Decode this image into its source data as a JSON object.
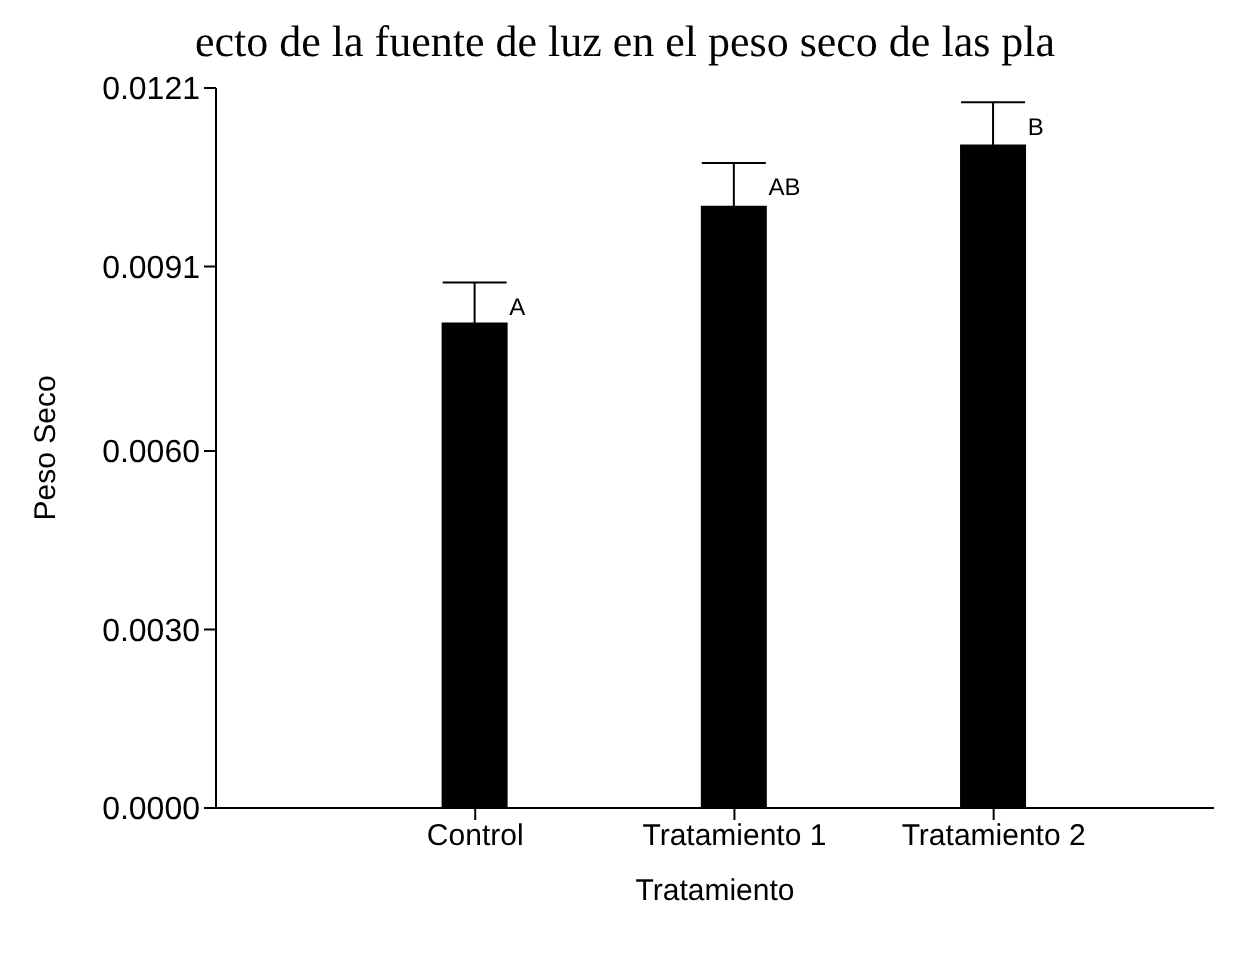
{
  "chart_data": {
    "type": "bar",
    "title": "ecto de la fuente de luz en el peso seco de las pla",
    "xlabel": "Tratamiento",
    "ylabel": "Peso Seco",
    "categories": [
      "Control",
      "Tratamiento 1",
      "Tratamiento 2"
    ],
    "values": [
      0.00816,
      0.01012,
      0.01115
    ],
    "errors": [
      0.00067,
      0.00072,
      0.00071
    ],
    "color": "#000000",
    "ylim": [
      0,
      0.0121
    ],
    "yticks": [
      {
        "value": 0,
        "label": "0.0000"
      },
      {
        "value": 0.003,
        "label": "0.0030"
      },
      {
        "value": 0.006,
        "label": "0.0060"
      },
      {
        "value": 0.0091,
        "label": "0.0091"
      },
      {
        "value": 0.0121,
        "label": "0.0121"
      }
    ],
    "annotations": [
      {
        "text": "A",
        "x": "Control",
        "y": 0.00883
      },
      {
        "text": "AB",
        "x": "Tratamiento 1",
        "y": 0.01084
      },
      {
        "text": "B",
        "x": "Tratamiento 2",
        "y": 0.01186
      }
    ],
    "grid": false,
    "legend": false
  }
}
